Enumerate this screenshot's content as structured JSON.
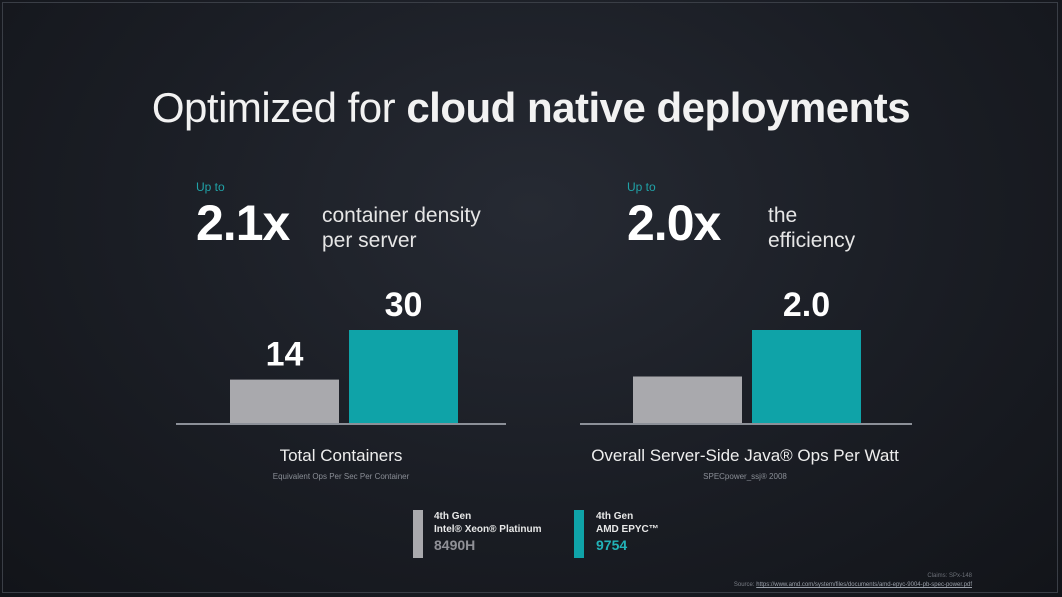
{
  "title": {
    "normal": "Optimized for",
    "bold": "cloud native deployments"
  },
  "panels": [
    {
      "upto": "Up to",
      "multiplier": "2.1x",
      "desc_line1": "container density",
      "desc_line2": "per server",
      "caption": "Total Containers",
      "subcaption": "Equivalent Ops Per Sec Per Container"
    },
    {
      "upto": "Up to",
      "multiplier": "2.0x",
      "desc_line1": "the",
      "desc_line2": "efficiency",
      "caption": "Overall Server-Side Java® Ops Per Watt",
      "subcaption": "SPECpower_ssj® 2008"
    }
  ],
  "legend": [
    {
      "gen": "4th Gen",
      "name": "Intel® Xeon® Platinum",
      "model": "8490H",
      "color": "#a9a9ad",
      "model_color": "#8f9096"
    },
    {
      "gen": "4th Gen",
      "name": "AMD EPYC™",
      "model": "9754",
      "color": "#0fa3a8",
      "model_color": "#22b3b8"
    }
  ],
  "footer": {
    "claim": "Claims: SPx-148",
    "source_label": "Source:",
    "source_url": "https://www.amd.com/system/files/documents/amd-epyc-9004-pb-spec-power.pdf"
  },
  "chart_data": [
    {
      "type": "bar",
      "categories": [
        "4th Gen Intel® Xeon® Platinum 8490H",
        "4th Gen AMD EPYC™ 9754"
      ],
      "values": [
        14,
        30
      ],
      "labels": [
        "14",
        "30"
      ],
      "colors": [
        "#a9a9ad",
        "#0fa3a8"
      ],
      "ylim": [
        0,
        30
      ],
      "xlabel": "Total Containers",
      "ylabel": ""
    },
    {
      "type": "bar",
      "categories": [
        "4th Gen Intel® Xeon® Platinum 8490H",
        "4th Gen AMD EPYC™ 9754"
      ],
      "values": [
        1.0,
        2.0
      ],
      "labels": [
        "",
        "2.0"
      ],
      "colors": [
        "#a9a9ad",
        "#0fa3a8"
      ],
      "ylim": [
        0,
        2.0
      ],
      "xlabel": "Overall Server-Side Java® Ops Per Watt",
      "ylabel": ""
    }
  ]
}
